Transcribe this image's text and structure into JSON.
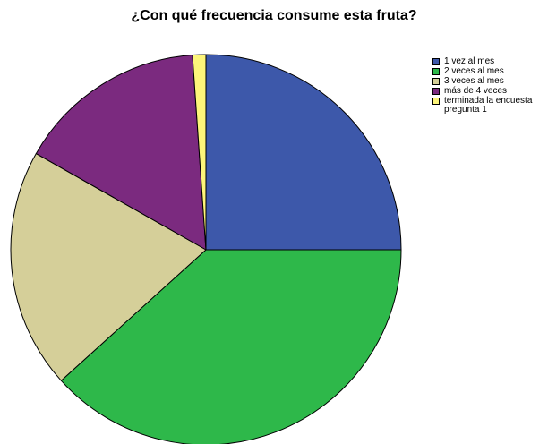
{
  "chart_data": {
    "type": "pie",
    "title": "¿Con qué frecuencia consume esta fruta?",
    "legend_position": "right",
    "categories": [
      "1 vez al mes",
      "2 veces al mes",
      "3 veces al mes",
      "más de 4 veces",
      "terminada la encuesta pregunta 1"
    ],
    "values": [
      25.0,
      38.3,
      19.9,
      15.7,
      1.1
    ],
    "unit": "percent",
    "colors": [
      "#3d58aa",
      "#2eb84a",
      "#d5cf99",
      "#7b2a7f",
      "#fdf57a"
    ],
    "start_angle": "12 o'clock",
    "direction": "clockwise"
  }
}
